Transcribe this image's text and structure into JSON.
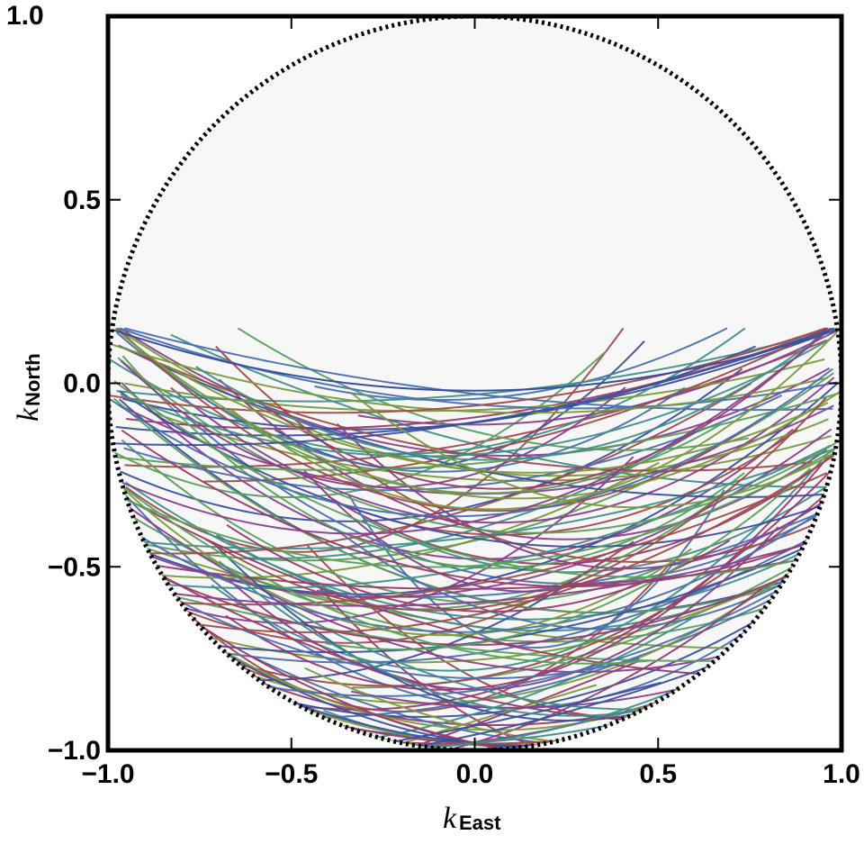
{
  "chart_data": {
    "type": "line",
    "xlabel": "k",
    "xlabel_sub": "East",
    "ylabel": "k",
    "ylabel_sub": "North",
    "xlim": [
      -1.0,
      1.0
    ],
    "ylim": [
      -1.0,
      1.0
    ],
    "xticks": [
      "−1.0",
      "−0.5",
      "0.0",
      "0.5",
      "1.0"
    ],
    "yticks": [
      "1.0",
      "0.5",
      "0.0",
      "−0.5",
      "−1.0"
    ],
    "xtick_values": [
      -1.0,
      -0.5,
      0.0,
      0.5,
      1.0
    ],
    "ytick_values": [
      1.0,
      0.5,
      0.0,
      -0.5,
      -1.0
    ],
    "unit_circle": {
      "radius": 1.0,
      "style": "dotted",
      "color": "#000000"
    },
    "disk_fill_color": "#f7f7f7",
    "palette": [
      "#3b4fa0",
      "#3f8f8a",
      "#7a9a3a",
      "#a34a4a",
      "#8a3f8f",
      "#4a6fb0",
      "#5aa05a",
      "#9a3a6a"
    ],
    "horizon_curve": {
      "k_north_at_edges": 0.15,
      "k_north_at_center": -0.02
    },
    "curve_family": {
      "count": 140,
      "k_north_at_edge_range": [
        -1.0,
        0.15
      ],
      "note_free": true
    }
  }
}
